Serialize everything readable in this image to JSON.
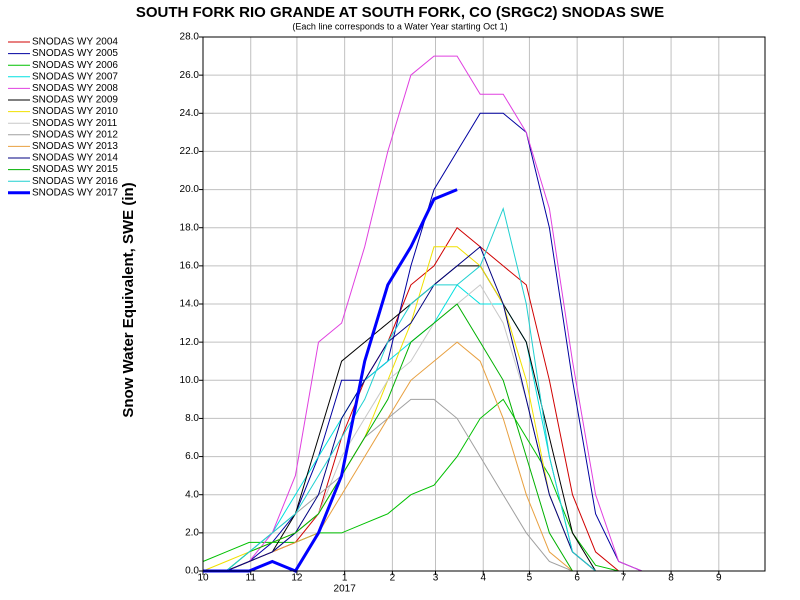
{
  "chart_data": {
    "type": "line",
    "title": "SOUTH FORK RIO GRANDE AT SOUTH FORK, CO (SRGC2) SNODAS SWE",
    "subtitle": "(Each line corresponds to a Water Year starting Oct 1)",
    "ylabel": "Snow Water Equivalent, SWE (in)",
    "year_label": "2017",
    "x": [
      0,
      15,
      30,
      45,
      60,
      75,
      90,
      105,
      120,
      135,
      150,
      165,
      180,
      195,
      210,
      225,
      240,
      255,
      270,
      285,
      300,
      315,
      330,
      345,
      360
    ],
    "xlim": [
      0,
      365
    ],
    "xticks": [
      {
        "value": 0,
        "label": "10"
      },
      {
        "value": 31,
        "label": "11"
      },
      {
        "value": 61,
        "label": "12"
      },
      {
        "value": 92,
        "label": "1"
      },
      {
        "value": 123,
        "label": "2"
      },
      {
        "value": 151,
        "label": "3"
      },
      {
        "value": 182,
        "label": "4"
      },
      {
        "value": 212,
        "label": "5"
      },
      {
        "value": 243,
        "label": "6"
      },
      {
        "value": 273,
        "label": "7"
      },
      {
        "value": 304,
        "label": "8"
      },
      {
        "value": 335,
        "label": "9"
      }
    ],
    "ylim": [
      0,
      28
    ],
    "yticks": [
      {
        "value": 0,
        "label": "0.0"
      },
      {
        "value": 2,
        "label": "2.0"
      },
      {
        "value": 4,
        "label": "4.0"
      },
      {
        "value": 6,
        "label": "6.0"
      },
      {
        "value": 8,
        "label": "8.0"
      },
      {
        "value": 10,
        "label": "10.0"
      },
      {
        "value": 12,
        "label": "12.0"
      },
      {
        "value": 14,
        "label": "14.0"
      },
      {
        "value": 16,
        "label": "16.0"
      },
      {
        "value": 18,
        "label": "18.0"
      },
      {
        "value": 20,
        "label": "20.0"
      },
      {
        "value": 22,
        "label": "22.0"
      },
      {
        "value": 24,
        "label": "24.0"
      },
      {
        "value": 26,
        "label": "26.0"
      },
      {
        "value": 28,
        "label": "28.0"
      }
    ],
    "grid": true,
    "legend": "left",
    "series": [
      {
        "name": "SNODAS WY 2004",
        "color": "#d00000",
        "values": [
          0,
          0,
          0.5,
          1,
          1.5,
          3,
          7,
          10,
          12,
          15,
          16,
          18,
          17,
          16,
          15,
          10,
          4,
          1,
          0,
          0,
          0,
          0,
          0,
          0,
          0
        ]
      },
      {
        "name": "SNODAS WY 2005",
        "color": "#0000a0",
        "values": [
          0,
          0,
          0.5,
          1.5,
          3,
          6,
          10,
          10,
          11,
          16,
          20,
          22,
          24,
          24,
          23,
          18,
          10,
          3,
          0.5,
          0,
          0,
          0,
          0,
          0,
          0
        ]
      },
      {
        "name": "SNODAS WY 2006",
        "color": "#00c000",
        "values": [
          0.5,
          1,
          1.5,
          1.5,
          1.5,
          2,
          2,
          2.5,
          3,
          4,
          4.5,
          6,
          8,
          9,
          7,
          5,
          2,
          0.3,
          0,
          0,
          0,
          0,
          0,
          0,
          0
        ]
      },
      {
        "name": "SNODAS WY 2007",
        "color": "#00e0e0",
        "values": [
          0,
          0,
          1,
          2,
          4,
          6,
          8,
          10,
          11,
          12,
          13,
          15,
          14,
          14,
          12,
          6,
          1,
          0,
          0,
          0,
          0,
          0,
          0,
          0,
          0
        ]
      },
      {
        "name": "SNODAS WY 2008",
        "color": "#e040e0",
        "values": [
          0,
          0,
          0.5,
          2,
          5,
          12,
          13,
          17,
          22,
          26,
          27,
          27,
          25,
          25,
          23,
          19,
          11,
          4,
          0.5,
          0,
          0,
          0,
          0,
          0,
          0
        ]
      },
      {
        "name": "SNODAS WY 2009",
        "color": "#000000",
        "values": [
          0,
          0,
          0.5,
          1,
          3,
          7,
          11,
          12,
          13,
          14,
          15,
          16,
          16,
          14,
          12,
          7,
          2,
          0,
          0,
          0,
          0,
          0,
          0,
          0,
          0
        ]
      },
      {
        "name": "SNODAS WY 2010",
        "color": "#f0e000",
        "values": [
          0,
          0.5,
          1,
          1.5,
          2,
          3,
          5,
          7,
          10,
          13,
          17,
          17,
          16,
          14,
          10,
          4,
          1,
          0,
          0,
          0,
          0,
          0,
          0,
          0,
          0
        ]
      },
      {
        "name": "SNODAS WY 2011",
        "color": "#c8c8c8",
        "values": [
          0,
          0,
          0.5,
          1,
          2,
          3,
          6,
          8,
          10,
          11,
          13,
          14,
          15,
          13,
          9,
          4,
          1,
          0,
          0,
          0,
          0,
          0,
          0,
          0,
          0
        ]
      },
      {
        "name": "SNODAS WY 2012",
        "color": "#a0a0a0",
        "values": [
          0,
          0,
          1,
          2,
          3,
          4,
          5,
          7,
          8,
          9,
          9,
          8,
          6,
          4,
          2,
          0.5,
          0,
          0,
          0,
          0,
          0,
          0,
          0,
          0,
          0
        ]
      },
      {
        "name": "SNODAS WY 2013",
        "color": "#e8a040",
        "values": [
          0,
          0,
          0.5,
          1,
          1.5,
          2,
          4,
          6,
          8,
          10,
          11,
          12,
          11,
          8,
          4,
          1,
          0,
          0,
          0,
          0,
          0,
          0,
          0,
          0,
          0
        ]
      },
      {
        "name": "SNODAS WY 2014",
        "color": "#000080",
        "values": [
          0,
          0,
          0.5,
          1,
          2,
          4,
          8,
          10,
          12,
          13,
          15,
          16,
          17,
          14,
          9,
          4,
          1,
          0,
          0,
          0,
          0,
          0,
          0,
          0,
          0
        ]
      },
      {
        "name": "SNODAS WY 2015",
        "color": "#00b000",
        "values": [
          0,
          0,
          1,
          1.5,
          2,
          3,
          5,
          7,
          9,
          12,
          13,
          14,
          12,
          10,
          6,
          2,
          0,
          0,
          0,
          0,
          0,
          0,
          0,
          0,
          0
        ]
      },
      {
        "name": "SNODAS WY 2016",
        "color": "#20d0d0",
        "values": [
          0,
          0,
          1,
          2,
          3,
          5,
          7,
          9,
          12,
          14,
          15,
          15,
          16,
          19,
          14,
          6,
          1,
          0,
          0,
          0,
          0,
          0,
          0,
          0,
          0
        ]
      },
      {
        "name": "SNODAS WY 2017",
        "color": "#0000ff",
        "values": [
          0,
          0,
          0,
          0.5,
          0,
          2,
          5,
          11,
          15,
          17,
          19.5,
          20,
          null,
          null,
          null,
          null,
          null,
          null,
          null,
          null,
          null,
          null,
          null,
          null,
          null
        ]
      }
    ]
  }
}
